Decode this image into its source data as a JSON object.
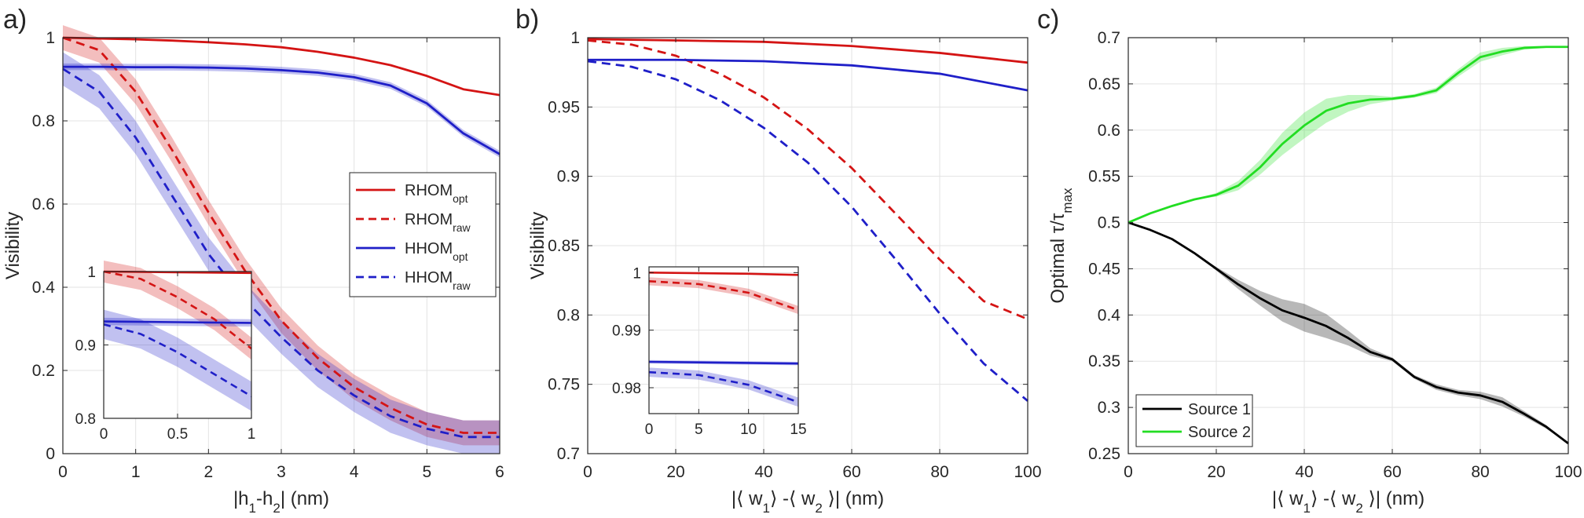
{
  "chart_data": [
    {
      "panel": "a)",
      "type": "line",
      "xlabel": "|h1-h2| (nm)",
      "xlabel_parts": {
        "main": "|h",
        "s1": "1",
        "mid": "-h",
        "s2": "2",
        "tail": "| (nm)"
      },
      "ylabel": "Visibility",
      "xlim": [
        0,
        6
      ],
      "ylim": [
        0,
        1
      ],
      "xticks": [
        "0",
        "1",
        "2",
        "3",
        "4",
        "5",
        "6"
      ],
      "yticks": [
        "0",
        "0.2",
        "0.4",
        "0.6",
        "0.8",
        "1"
      ],
      "grid": true,
      "legend_position": "right-middle",
      "series": [
        {
          "name": "RHOMopt",
          "label_main": "RHOM",
          "label_sub": "opt",
          "color": "#d41414",
          "style": "solid",
          "x": [
            0,
            0.5,
            1,
            1.5,
            2,
            2.5,
            3,
            3.5,
            4,
            4.5,
            5,
            5.5,
            6
          ],
          "y": [
            1.0,
            0.998,
            0.996,
            0.993,
            0.989,
            0.984,
            0.977,
            0.966,
            0.952,
            0.934,
            0.908,
            0.876,
            0.862
          ],
          "band": 0.0
        },
        {
          "name": "RHOMraw",
          "label_main": "RHOM",
          "label_sub": "raw",
          "color": "#d41414",
          "style": "dashed",
          "x": [
            0,
            0.5,
            1,
            1.5,
            2,
            2.5,
            3,
            3.5,
            4,
            4.5,
            5,
            5.5,
            6
          ],
          "y": [
            1.0,
            0.97,
            0.87,
            0.73,
            0.58,
            0.44,
            0.32,
            0.23,
            0.16,
            0.11,
            0.07,
            0.05,
            0.05
          ],
          "band": 0.03
        },
        {
          "name": "HHOMopt",
          "label_main": "HHOM",
          "label_sub": "opt",
          "color": "#1f1fc8",
          "style": "solid",
          "x": [
            0,
            0.5,
            1,
            1.5,
            2,
            2.5,
            3,
            3.5,
            4,
            4.5,
            5,
            5.5,
            6
          ],
          "y": [
            0.93,
            0.93,
            0.929,
            0.929,
            0.928,
            0.926,
            0.922,
            0.916,
            0.905,
            0.885,
            0.842,
            0.77,
            0.72
          ],
          "band": 0.008
        },
        {
          "name": "HHOMraw",
          "label_main": "HHOM",
          "label_sub": "raw",
          "color": "#1f1fc8",
          "style": "dashed",
          "x": [
            0,
            0.5,
            1,
            1.5,
            2,
            2.5,
            3,
            3.5,
            4,
            4.5,
            5,
            5.5,
            6
          ],
          "y": [
            0.925,
            0.87,
            0.76,
            0.62,
            0.48,
            0.37,
            0.28,
            0.2,
            0.14,
            0.09,
            0.06,
            0.04,
            0.04
          ],
          "band": 0.04
        }
      ],
      "inset": {
        "xlim": [
          0,
          1
        ],
        "ylim": [
          0.8,
          1
        ],
        "xticks": [
          "0",
          "0.5",
          "1"
        ],
        "yticks": [
          "0.8",
          "0.9",
          "1"
        ],
        "series": [
          {
            "color": "#d41414",
            "style": "solid",
            "x": [
              0,
              0.5,
              1
            ],
            "y": [
              1.0,
              0.999,
              0.998
            ],
            "band": 0.0
          },
          {
            "color": "#d41414",
            "style": "dashed",
            "x": [
              0,
              0.25,
              0.5,
              0.75,
              1
            ],
            "y": [
              1.0,
              0.99,
              0.965,
              0.935,
              0.895
            ],
            "band": 0.015
          },
          {
            "color": "#1f1fc8",
            "style": "solid",
            "x": [
              0,
              0.5,
              1
            ],
            "y": [
              0.932,
              0.931,
              0.93
            ],
            "band": 0.005
          },
          {
            "color": "#1f1fc8",
            "style": "dashed",
            "x": [
              0,
              0.25,
              0.5,
              0.75,
              1
            ],
            "y": [
              0.928,
              0.915,
              0.89,
              0.86,
              0.83
            ],
            "band": 0.02
          }
        ]
      }
    },
    {
      "panel": "b)",
      "type": "line",
      "xlabel": "|⟨ w1⟩ -⟨ w2 ⟩| (nm)",
      "xlabel_parts": {
        "main": "|⟨ w",
        "s1": "1",
        "mid": "⟩ -⟨ w",
        "s2": "2",
        "tail": " ⟩| (nm)"
      },
      "ylabel": "Visibility",
      "xlim": [
        0,
        100
      ],
      "ylim": [
        0.7,
        1
      ],
      "xticks": [
        "0",
        "20",
        "40",
        "60",
        "80",
        "100"
      ],
      "yticks": [
        "0.7",
        "0.75",
        "0.8",
        "0.85",
        "0.9",
        "0.95",
        "1"
      ],
      "grid": true,
      "series": [
        {
          "name": "RHOMopt",
          "color": "#d41414",
          "style": "solid",
          "x": [
            0,
            20,
            40,
            60,
            80,
            100
          ],
          "y": [
            0.999,
            0.998,
            0.997,
            0.994,
            0.989,
            0.982
          ],
          "band": 0.0
        },
        {
          "name": "RHOMraw",
          "color": "#d41414",
          "style": "dashed",
          "x": [
            0,
            10,
            20,
            30,
            40,
            50,
            60,
            70,
            80,
            90,
            100
          ],
          "y": [
            0.998,
            0.995,
            0.987,
            0.974,
            0.957,
            0.934,
            0.906,
            0.873,
            0.84,
            0.81,
            0.797
          ],
          "band": 0.0
        },
        {
          "name": "HHOMopt",
          "color": "#1f1fc8",
          "style": "solid",
          "x": [
            0,
            20,
            40,
            60,
            80,
            100
          ],
          "y": [
            0.984,
            0.984,
            0.983,
            0.98,
            0.974,
            0.962
          ],
          "band": 0.0
        },
        {
          "name": "HHOMraw",
          "color": "#1f1fc8",
          "style": "dashed",
          "x": [
            0,
            10,
            20,
            30,
            40,
            50,
            60,
            70,
            80,
            90,
            100
          ],
          "y": [
            0.983,
            0.979,
            0.97,
            0.955,
            0.935,
            0.91,
            0.878,
            0.84,
            0.801,
            0.765,
            0.738
          ],
          "band": 0.0
        }
      ],
      "inset": {
        "xlim": [
          0,
          15
        ],
        "ylim": [
          0.9755,
          1.001
        ],
        "xticks": [
          "0",
          "5",
          "10",
          "15"
        ],
        "yticks": [
          "0.98",
          "0.99",
          "1"
        ],
        "series": [
          {
            "color": "#d41414",
            "style": "solid",
            "x": [
              0,
              5,
              10,
              15
            ],
            "y": [
              1.0,
              0.9999,
              0.9998,
              0.9996
            ],
            "band": 0.0
          },
          {
            "color": "#d41414",
            "style": "dashed",
            "x": [
              0,
              5,
              10,
              15
            ],
            "y": [
              0.9985,
              0.998,
              0.9965,
              0.9935
            ],
            "band": 0.0007
          },
          {
            "color": "#1f1fc8",
            "style": "solid",
            "x": [
              0,
              5,
              10,
              15
            ],
            "y": [
              0.9845,
              0.9844,
              0.9843,
              0.9842
            ],
            "band": 0.0003
          },
          {
            "color": "#1f1fc8",
            "style": "dashed",
            "x": [
              0,
              5,
              10,
              15
            ],
            "y": [
              0.9827,
              0.9822,
              0.9805,
              0.9775
            ],
            "band": 0.0008
          }
        ]
      }
    },
    {
      "panel": "c)",
      "type": "line",
      "xlabel": "|⟨ w1⟩ -⟨ w2 ⟩| (nm)",
      "xlabel_parts": {
        "main": "|⟨ w",
        "s1": "1",
        "mid": "⟩ -⟨ w",
        "s2": "2",
        "tail": " ⟩| (nm)"
      },
      "ylabel": "Optimal τ/τmax",
      "ylabel_parts": {
        "main": "Optimal τ/τ",
        "sub": "max"
      },
      "xlim": [
        0,
        100
      ],
      "ylim": [
        0.25,
        0.7
      ],
      "xticks": [
        "0",
        "20",
        "40",
        "60",
        "80",
        "100"
      ],
      "yticks": [
        "0.25",
        "0.3",
        "0.35",
        "0.4",
        "0.45",
        "0.5",
        "0.55",
        "0.6",
        "0.65",
        "0.7"
      ],
      "grid": true,
      "legend_position": "bottom-left",
      "series": [
        {
          "name": "Source 1",
          "color": "#000000",
          "style": "solid",
          "x": [
            0,
            5,
            10,
            15,
            20,
            25,
            30,
            35,
            40,
            45,
            50,
            55,
            60,
            65,
            70,
            75,
            80,
            85,
            90,
            95,
            100
          ],
          "y": [
            0.5,
            0.492,
            0.482,
            0.467,
            0.45,
            0.433,
            0.418,
            0.405,
            0.397,
            0.388,
            0.375,
            0.36,
            0.352,
            0.333,
            0.322,
            0.316,
            0.313,
            0.306,
            0.293,
            0.279,
            0.261
          ],
          "band": [
            0,
            0,
            0,
            0,
            0.002,
            0.005,
            0.008,
            0.012,
            0.015,
            0.013,
            0.008,
            0.004,
            0.002,
            0.002,
            0.003,
            0.003,
            0.004,
            0.005,
            0.003,
            0.002,
            0
          ]
        },
        {
          "name": "Source 2",
          "color": "#22dd22",
          "style": "solid",
          "x": [
            0,
            5,
            10,
            15,
            20,
            25,
            30,
            35,
            40,
            45,
            50,
            55,
            60,
            65,
            70,
            75,
            80,
            85,
            90,
            95,
            100
          ],
          "y": [
            0.5,
            0.51,
            0.518,
            0.525,
            0.53,
            0.54,
            0.56,
            0.585,
            0.605,
            0.621,
            0.629,
            0.633,
            0.634,
            0.637,
            0.643,
            0.662,
            0.679,
            0.685,
            0.689,
            0.69,
            0.69
          ],
          "band": [
            0,
            0,
            0,
            0,
            0.002,
            0.005,
            0.008,
            0.012,
            0.014,
            0.013,
            0.009,
            0.005,
            0.002,
            0.002,
            0.003,
            0.004,
            0.005,
            0.004,
            0.002,
            0.001,
            0
          ]
        }
      ]
    }
  ]
}
